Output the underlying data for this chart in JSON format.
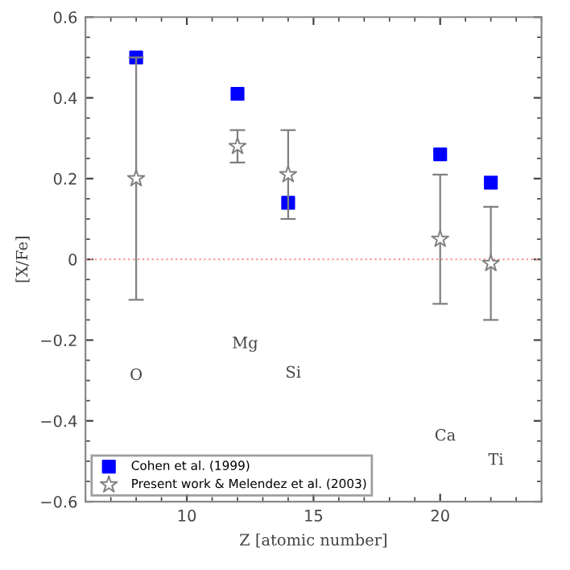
{
  "chart_data": {
    "type": "scatter",
    "xlabel": "Z [atomic number]",
    "ylabel": "[X/Fe]",
    "xlim": [
      6,
      24
    ],
    "xticks": [
      10,
      15,
      20
    ],
    "ylim": [
      -0.6,
      0.6
    ],
    "yticks": [
      -0.6,
      -0.4,
      -0.2,
      0,
      0.2,
      0.4,
      0.6
    ],
    "series": [
      {
        "name": "Cohen et al. (1999)",
        "color": "#0000ff",
        "marker": "square",
        "x": [
          8,
          12,
          14,
          20,
          22
        ],
        "values": [
          0.5,
          0.41,
          0.14,
          0.26,
          0.19
        ]
      },
      {
        "name": "Present work & Melendez et al. (2003)",
        "color": "#808080",
        "marker": "star",
        "x": [
          8,
          12,
          14,
          20,
          22
        ],
        "values": [
          0.2,
          0.28,
          0.21,
          0.05,
          -0.01
        ],
        "errors": [
          [
            -0.1,
            0.5
          ],
          [
            0.24,
            0.32
          ],
          [
            0.1,
            0.32
          ],
          [
            -0.11,
            0.21
          ],
          [
            -0.15,
            0.13
          ]
        ]
      }
    ],
    "ref_lines": [
      {
        "axis": "y",
        "value": 0,
        "color": "#ff9999",
        "line_style": "dotted"
      }
    ],
    "annotations": [
      "O",
      "Mg",
      "Si",
      "Ca",
      "Ti"
    ],
    "legend": "bottom left",
    "grid": false
  }
}
